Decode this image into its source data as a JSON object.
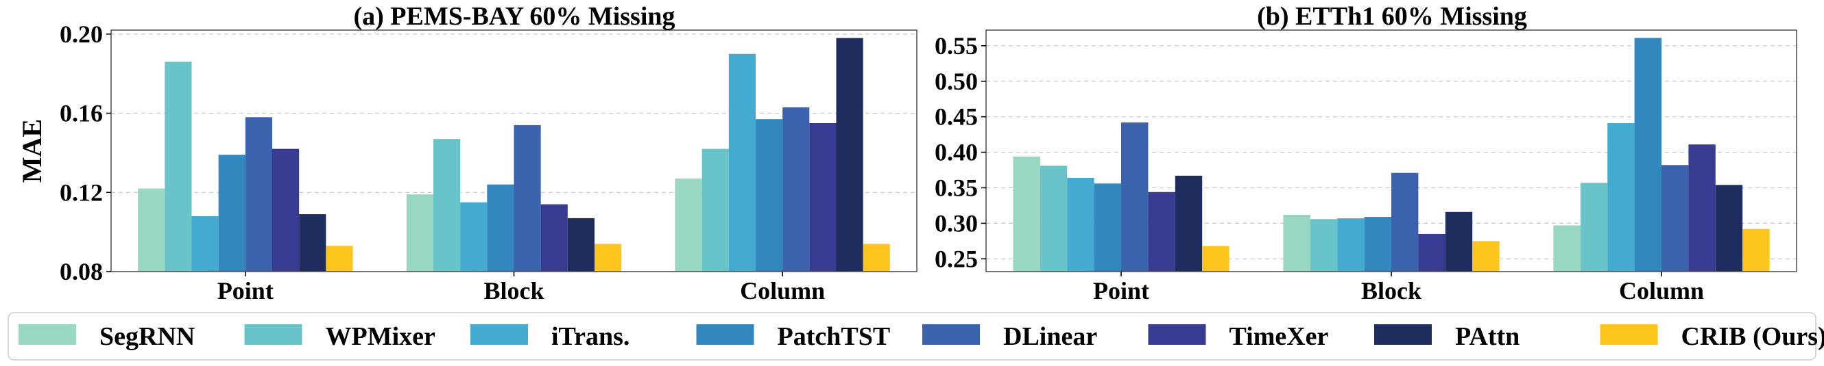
{
  "chart_data": [
    {
      "type": "bar",
      "title": "(a) PEMS-BAY 60% Missing",
      "xlabel": "",
      "ylabel": "MAE",
      "ylim": [
        0.08,
        0.202
      ],
      "yticks": [
        0.08,
        0.12,
        0.16,
        0.2
      ],
      "ytick_labels": [
        "0.08",
        "0.12",
        "0.16",
        "0.20"
      ],
      "grid": true,
      "categories": [
        "Point",
        "Block",
        "Column"
      ],
      "series": [
        {
          "name": "SegRNN",
          "values": [
            0.122,
            0.119,
            0.127
          ]
        },
        {
          "name": "WPMixer",
          "values": [
            0.186,
            0.147,
            0.142
          ]
        },
        {
          "name": "iTrans.",
          "values": [
            0.108,
            0.115,
            0.19
          ]
        },
        {
          "name": "PatchTST",
          "values": [
            0.139,
            0.124,
            0.157
          ]
        },
        {
          "name": "DLinear",
          "values": [
            0.158,
            0.154,
            0.163
          ]
        },
        {
          "name": "TimeXer",
          "values": [
            0.142,
            0.114,
            0.155
          ]
        },
        {
          "name": "PAttn",
          "values": [
            0.109,
            0.107,
            0.198
          ]
        },
        {
          "name": "CRIB (Ours)",
          "values": [
            0.093,
            0.094,
            0.094
          ]
        }
      ]
    },
    {
      "type": "bar",
      "title": "(b) ETTh1 60% Missing",
      "xlabel": "",
      "ylabel": "",
      "ylim": [
        0.232,
        0.572
      ],
      "yticks": [
        0.25,
        0.3,
        0.35,
        0.4,
        0.45,
        0.5,
        0.55
      ],
      "ytick_labels": [
        "0.25",
        "0.30",
        "0.35",
        "0.40",
        "0.45",
        "0.50",
        "0.55"
      ],
      "grid": true,
      "categories": [
        "Point",
        "Block",
        "Column"
      ],
      "series": [
        {
          "name": "SegRNN",
          "values": [
            0.394,
            0.312,
            0.297
          ]
        },
        {
          "name": "WPMixer",
          "values": [
            0.381,
            0.306,
            0.357
          ]
        },
        {
          "name": "iTrans.",
          "values": [
            0.364,
            0.307,
            0.441
          ]
        },
        {
          "name": "PatchTST",
          "values": [
            0.356,
            0.309,
            0.561
          ]
        },
        {
          "name": "DLinear",
          "values": [
            0.442,
            0.371,
            0.382
          ]
        },
        {
          "name": "TimeXer",
          "values": [
            0.344,
            0.285,
            0.411
          ]
        },
        {
          "name": "PAttn",
          "values": [
            0.367,
            0.316,
            0.354
          ]
        },
        {
          "name": "CRIB (Ours)",
          "values": [
            0.268,
            0.275,
            0.292
          ]
        }
      ]
    }
  ],
  "legend": {
    "placement": "bottom",
    "items": [
      "SegRNN",
      "WPMixer",
      "iTrans.",
      "PatchTST",
      "DLinear",
      "TimeXer",
      "PAttn",
      "CRIB (Ours)"
    ]
  },
  "colors": [
    "#98d8c2",
    "#68c4c8",
    "#42abcf",
    "#3387bf",
    "#3a62ad",
    "#373c92",
    "#1f2d5e",
    "#fec61d"
  ]
}
